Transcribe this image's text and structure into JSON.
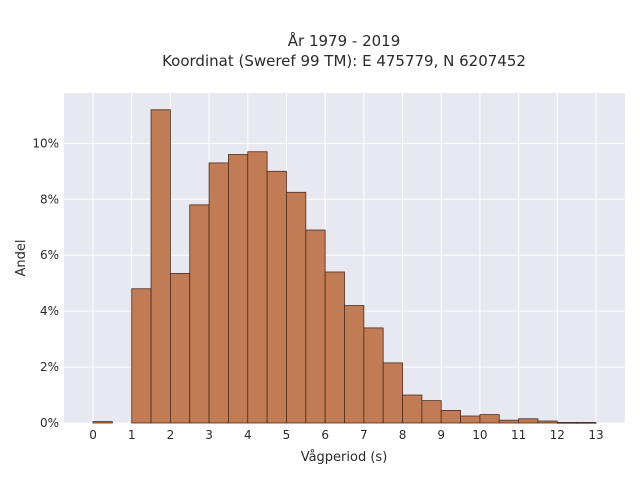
{
  "chart_data": {
    "type": "bar",
    "title": "År 1979 - 2019",
    "subtitle": "Koordinat (Sweref 99 TM): E 475779, N 6207452",
    "xlabel": "Vågperiod (s)",
    "ylabel": "Andel",
    "xlim": [
      -0.75,
      13.75
    ],
    "ylim": [
      0,
      11.8
    ],
    "x_ticks": [
      0,
      1,
      2,
      3,
      4,
      5,
      6,
      7,
      8,
      9,
      10,
      11,
      12,
      13
    ],
    "y_ticks": [
      0,
      2,
      4,
      6,
      8,
      10
    ],
    "y_tick_labels": [
      "0%",
      "2%",
      "4%",
      "6%",
      "8%",
      "10%"
    ],
    "bin_width": 0.5,
    "bin_starts": [
      0,
      0.5,
      1,
      1.5,
      2,
      2.5,
      3,
      3.5,
      4,
      4.5,
      5,
      5.5,
      6,
      6.5,
      7,
      7.5,
      8,
      8.5,
      9,
      9.5,
      10,
      10.5,
      11,
      11.5,
      12,
      12.5
    ],
    "values": [
      0.05,
      0,
      4.8,
      11.2,
      5.35,
      7.8,
      9.3,
      9.6,
      9.7,
      9.0,
      8.25,
      6.9,
      5.4,
      4.2,
      3.4,
      2.15,
      1.0,
      0.8,
      0.45,
      0.25,
      0.3,
      0.1,
      0.15,
      0.07,
      0.02,
      0.02
    ],
    "grid": true,
    "colors": {
      "bar_fill": "#c17c55",
      "bar_edge": "#4a2c1e",
      "plot_background": "#e8e8f0",
      "grid": "#ffffff"
    }
  }
}
